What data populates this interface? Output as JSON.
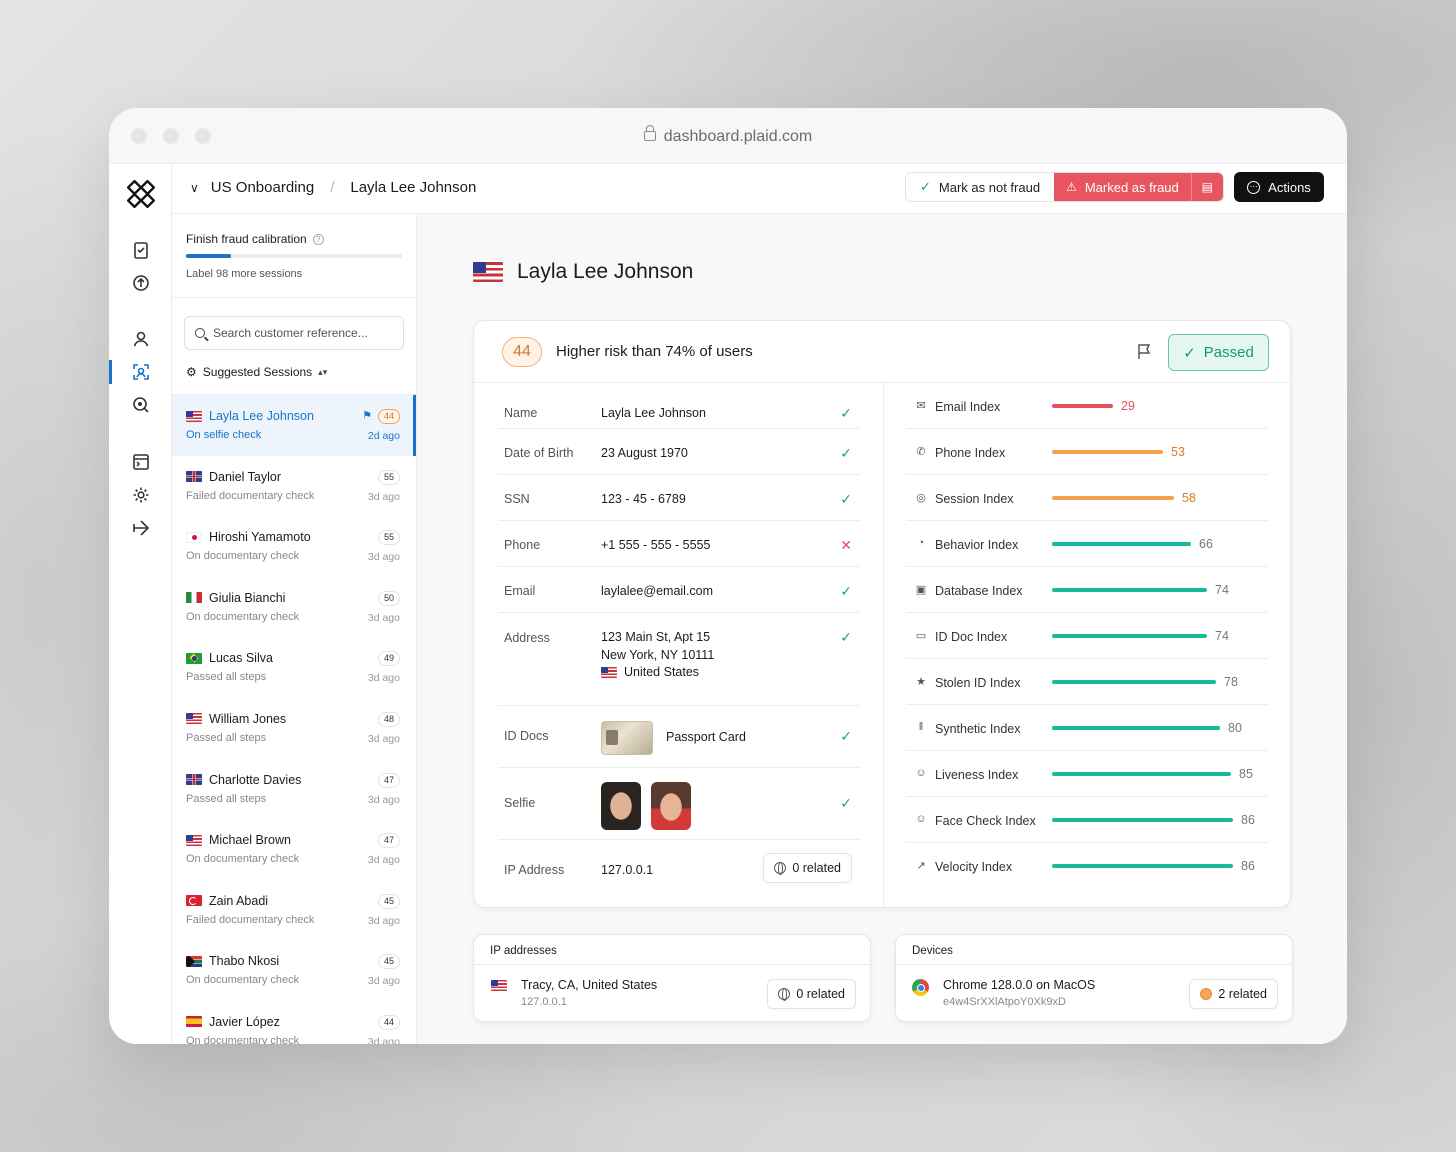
{
  "browser": {
    "url": "dashboard.plaid.com"
  },
  "header": {
    "breadcrumb_parent": "US Onboarding",
    "breadcrumb_current": "Layla Lee Johnson",
    "mark_not_fraud": "Mark as not fraud",
    "marked_fraud": "Marked as fraud",
    "actions": "Actions"
  },
  "calibration": {
    "title": "Finish fraud calibration",
    "subtitle": "Label 98 more sessions",
    "progress_fraction": 0.21
  },
  "search": {
    "placeholder": "Search customer reference..."
  },
  "sessions_header": "Suggested Sessions",
  "sessions": [
    {
      "name": "Layla Lee Johnson",
      "status": "On selfie check",
      "score": "44",
      "ago": "2d ago",
      "flag": "us",
      "active": true
    },
    {
      "name": "Daniel Taylor",
      "status": "Failed documentary check",
      "score": "55",
      "ago": "3d ago",
      "flag": "gb"
    },
    {
      "name": "Hiroshi Yamamoto",
      "status": "On documentary check",
      "score": "55",
      "ago": "3d ago",
      "flag": "jp"
    },
    {
      "name": "Giulia Bianchi",
      "status": "On documentary check",
      "score": "50",
      "ago": "3d ago",
      "flag": "it"
    },
    {
      "name": "Lucas Silva",
      "status": "Passed all steps",
      "score": "49",
      "ago": "3d ago",
      "flag": "br"
    },
    {
      "name": "William Jones",
      "status": "Passed all steps",
      "score": "48",
      "ago": "3d ago",
      "flag": "us"
    },
    {
      "name": "Charlotte Davies",
      "status": "Passed all steps",
      "score": "47",
      "ago": "3d ago",
      "flag": "gb"
    },
    {
      "name": "Michael Brown",
      "status": "On documentary check",
      "score": "47",
      "ago": "3d ago",
      "flag": "us"
    },
    {
      "name": "Zain Abadi",
      "status": "Failed documentary check",
      "score": "45",
      "ago": "3d ago",
      "flag": "tr"
    },
    {
      "name": "Thabo Nkosi",
      "status": "On documentary check",
      "score": "45",
      "ago": "3d ago",
      "flag": "za"
    },
    {
      "name": "Javier López",
      "status": "On documentary check",
      "score": "44",
      "ago": "3d ago",
      "flag": "es"
    }
  ],
  "profile": {
    "name": "Layla Lee Johnson",
    "risk_score": "44",
    "risk_text": "Higher risk than 74% of users",
    "status": "Passed",
    "fields": {
      "name": {
        "label": "Name",
        "value": "Layla Lee Johnson"
      },
      "dob": {
        "label": "Date of Birth",
        "value": "23 August 1970"
      },
      "ssn": {
        "label": "SSN",
        "value": "123 - 45 - 6789"
      },
      "phone": {
        "label": "Phone",
        "value": "+1 555 - 555 - 5555"
      },
      "email": {
        "label": "Email",
        "value": "laylalee@email.com"
      },
      "address": {
        "label": "Address",
        "line1": "123 Main St, Apt 15",
        "line2": "New York, NY 10111",
        "country": "United States"
      },
      "iddocs": {
        "label": "ID Docs",
        "value": "Passport Card"
      },
      "selfie": {
        "label": "Selfie"
      },
      "ip": {
        "label": "IP Address",
        "value": "127.0.0.1",
        "related": "0 related"
      }
    }
  },
  "indexes": [
    {
      "name": "Email Index",
      "value": 29,
      "color": "#e5505c",
      "icon": "mail-icon"
    },
    {
      "name": "Phone Index",
      "value": 53,
      "color": "#f5a04a",
      "icon": "phone-icon"
    },
    {
      "name": "Session Index",
      "value": 58,
      "color": "#f5a04a",
      "icon": "globe-icon"
    },
    {
      "name": "Behavior Index",
      "value": 66,
      "color": "#18b99a",
      "icon": "fingerprint-icon"
    },
    {
      "name": "Database Index",
      "value": 74,
      "color": "#18b99a",
      "icon": "database-icon"
    },
    {
      "name": "ID Doc Index",
      "value": 74,
      "color": "#18b99a",
      "icon": "id-card-icon"
    },
    {
      "name": "Stolen ID Index",
      "value": 78,
      "color": "#18b99a",
      "icon": "running-icon"
    },
    {
      "name": "Synthetic Index",
      "value": 80,
      "color": "#18b99a",
      "icon": "columns-icon"
    },
    {
      "name": "Liveness Index",
      "value": 85,
      "color": "#18b99a",
      "icon": "user-check-icon"
    },
    {
      "name": "Face Check Index",
      "value": 86,
      "color": "#18b99a",
      "icon": "smile-icon"
    },
    {
      "name": "Velocity Index",
      "value": 86,
      "color": "#18b99a",
      "icon": "arrow-up-right-icon"
    }
  ],
  "ip_card": {
    "title": "IP addresses",
    "location": "Tracy, CA, United States",
    "ip": "127.0.0.1",
    "related": "0 related"
  },
  "devices_card": {
    "title": "Devices",
    "device": "Chrome 128.0.0 on MacOS",
    "device_id": "e4w4SrXXlAtpoY0Xk9xD",
    "related": "2 related"
  }
}
